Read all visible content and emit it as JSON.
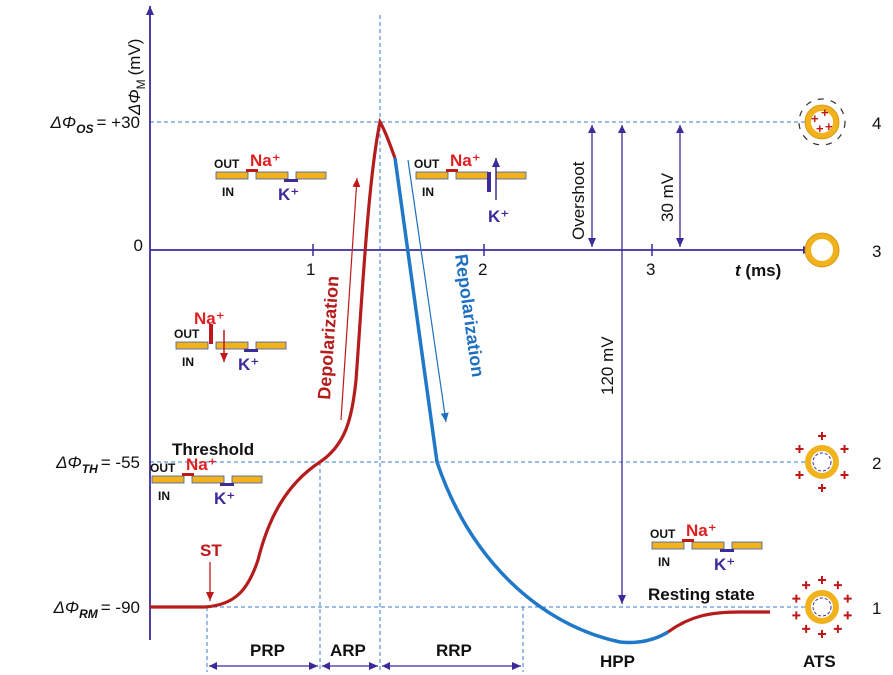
{
  "axes": {
    "y_label": {
      "symbol": "ΔΦ",
      "sub": "M",
      "unit": "(mV)"
    },
    "x_label": {
      "symbol": "t",
      "unit": "(ms)"
    },
    "x_ticks": [
      "1",
      "2",
      "3"
    ],
    "y_levels": [
      {
        "symbol": "ΔΦ",
        "sub": "OS",
        "value": "= +30"
      },
      {
        "symbol": "",
        "sub": "",
        "value": "0"
      },
      {
        "symbol": "ΔΦ",
        "sub": "TH",
        "value": "= -55"
      },
      {
        "symbol": "ΔΦ",
        "sub": "RM",
        "value": "= -90"
      }
    ]
  },
  "labels": {
    "threshold": "Threshold",
    "depolarization": "Depolarization",
    "repolarization": "Repolarization",
    "overshoot": "Overshoot",
    "mv30": "30 mV",
    "mv120": "120 mV",
    "st": "ST",
    "hpp": "HPP",
    "resting": "Resting state",
    "ats": "ATS"
  },
  "intervals": [
    "PRP",
    "ARP",
    "RRP"
  ],
  "states": [
    "4",
    "3",
    "2",
    "1"
  ],
  "icons": [
    {
      "out": "OUT",
      "in": "IN",
      "na": "Na⁺",
      "k": "K⁺"
    },
    {
      "out": "OUT",
      "in": "IN",
      "na": "Na⁺",
      "k": "K⁺"
    },
    {
      "out": "OUT",
      "in": "IN",
      "na": "Na⁺",
      "k": "K⁺"
    },
    {
      "out": "OUT",
      "in": "IN",
      "na": "Na⁺",
      "k": "K⁺"
    },
    {
      "out": "OUT",
      "in": "IN",
      "na": "Na⁺",
      "k": "K⁺"
    }
  ]
}
